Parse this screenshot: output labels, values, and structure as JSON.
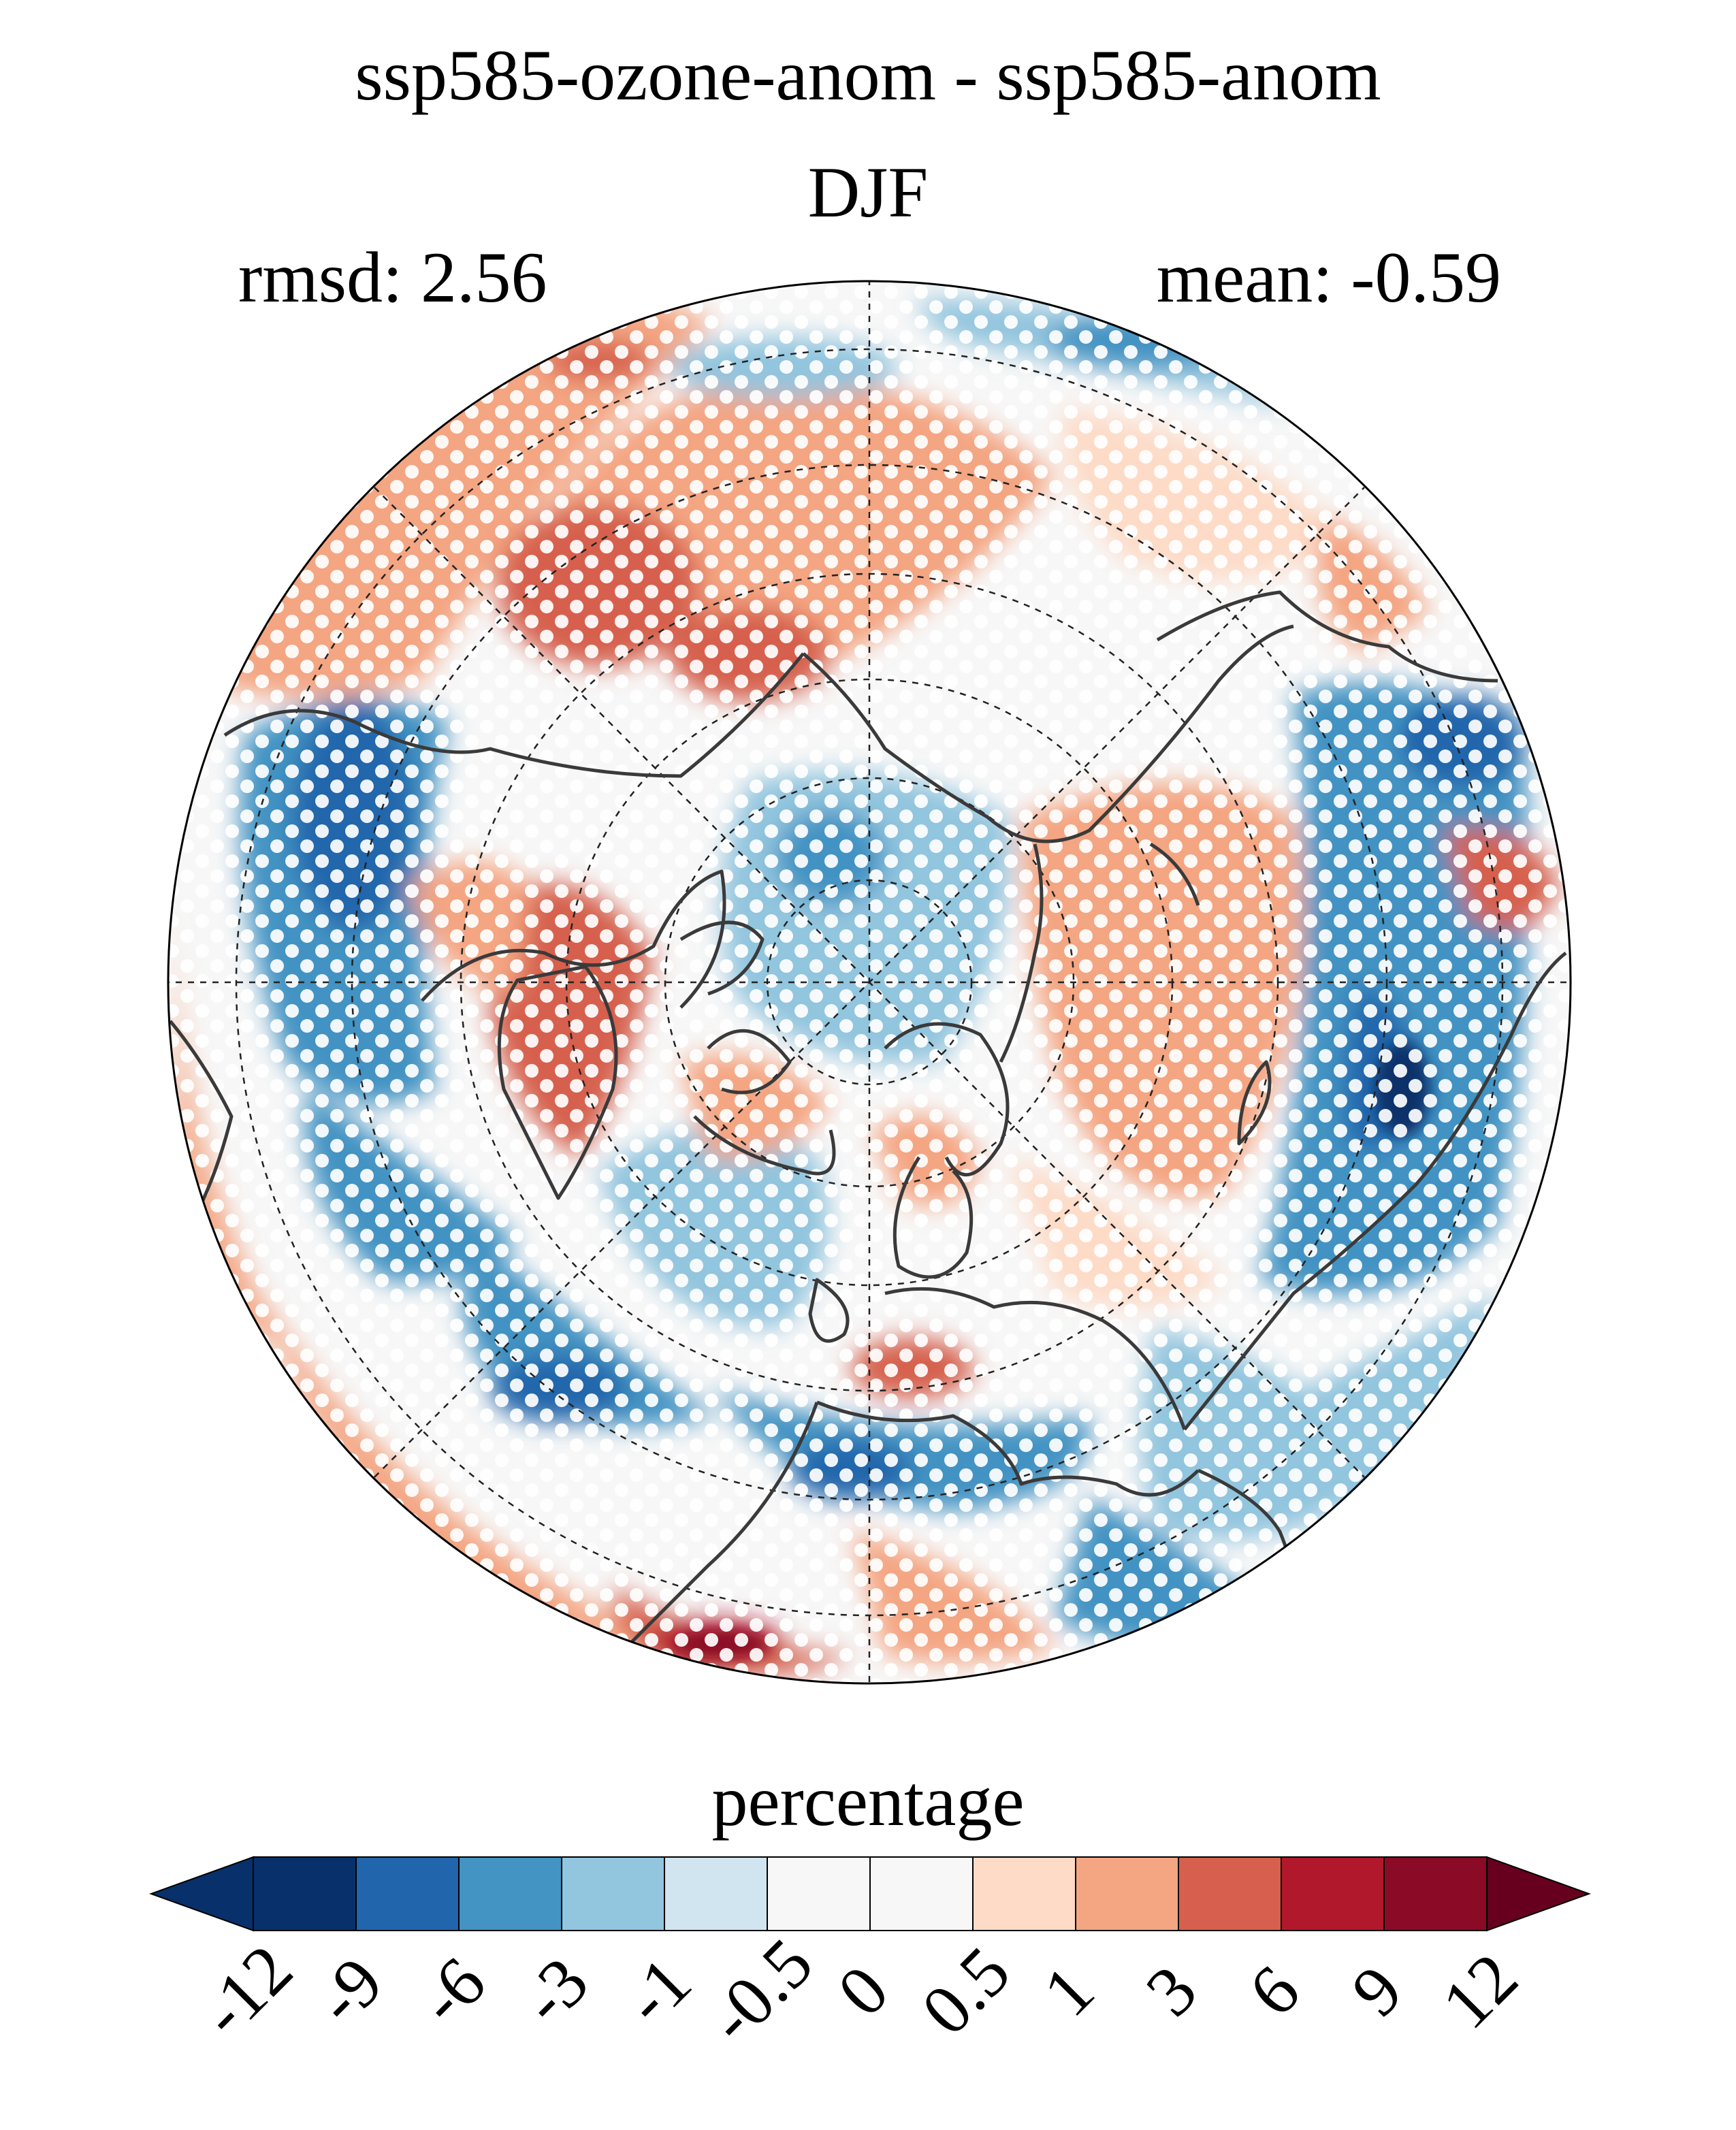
{
  "title": {
    "main": "ssp585-ozone-anom - ssp585-anom",
    "season": "DJF"
  },
  "stats": {
    "rmsd": "rmsd: 2.56",
    "mean": "mean: -0.59"
  },
  "colorbar": {
    "label": "percentage",
    "ticks": [
      "-12",
      "-9",
      "-6",
      "-3",
      "-1",
      "-0.5",
      "0",
      "0.5",
      "1",
      "3",
      "6",
      "9",
      "12"
    ],
    "colors": [
      "#08306b",
      "#08306b",
      "#2166ac",
      "#4393c3",
      "#92c5de",
      "#d1e5f0",
      "#f7f7f7",
      "#f7f7f7",
      "#fddbc7",
      "#f4a582",
      "#d6604d",
      "#b2182b",
      "#8b0a26",
      "#67001f"
    ]
  },
  "map": {
    "projection": "north polar stereographic",
    "stippling": "white dots mark significance",
    "coastline_color": "#3a3a3a"
  }
}
